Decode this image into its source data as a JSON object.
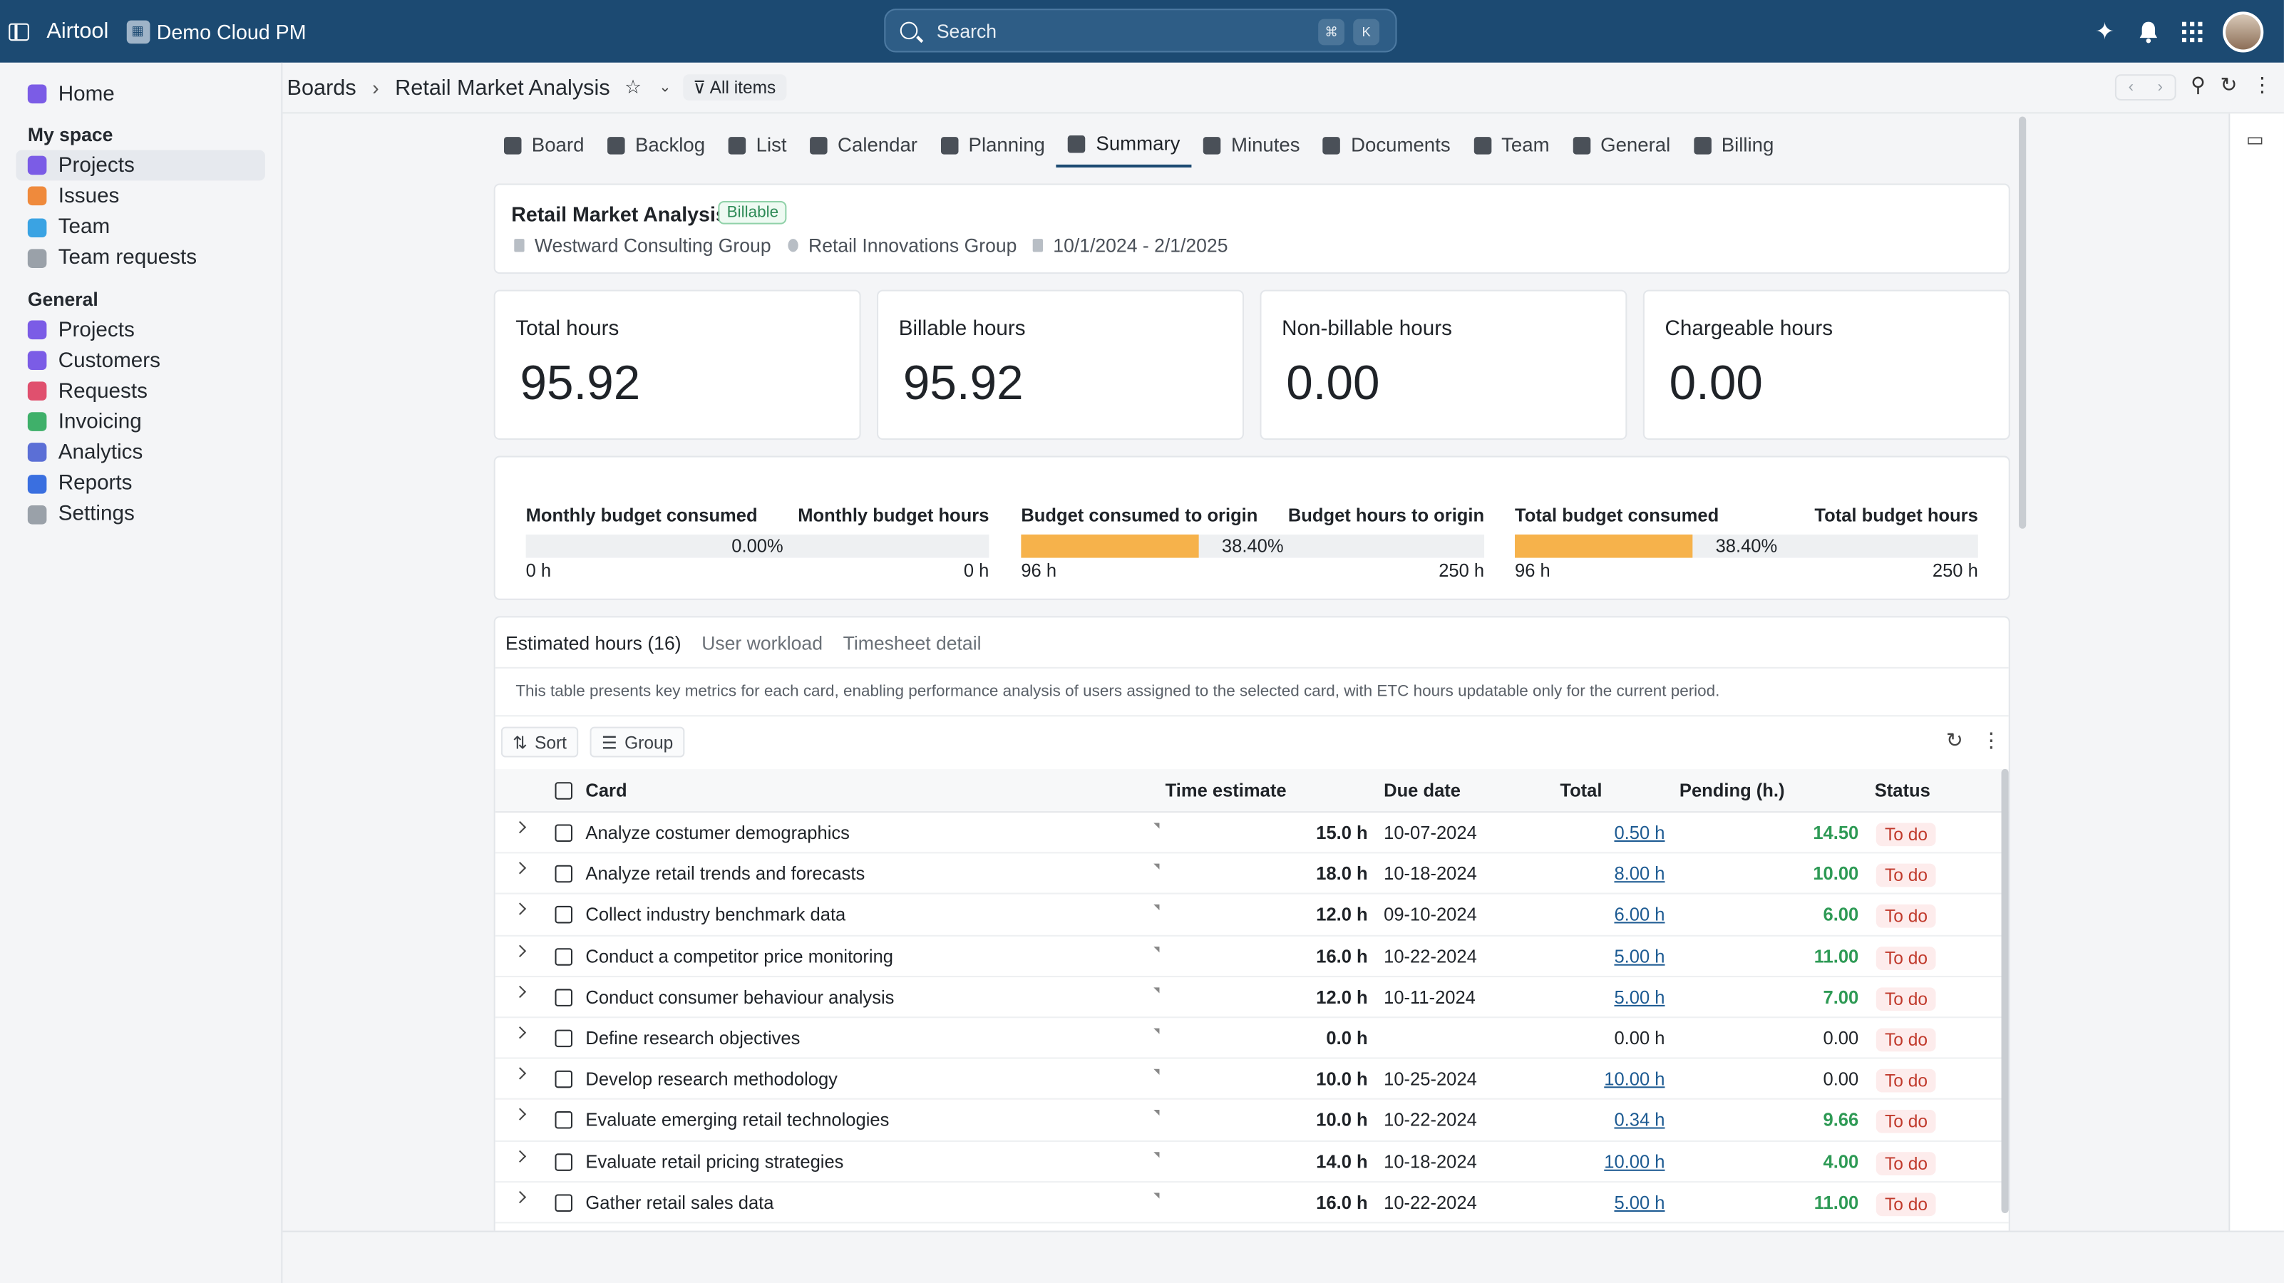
{
  "topbar": {
    "app_name": "Airtool",
    "workspace": "Demo Cloud PM",
    "search_placeholder": "Search",
    "kbd_cmd": "⌘",
    "kbd_k": "K"
  },
  "sidebar": {
    "home": "Home",
    "my_space_label": "My space",
    "my_space_items": [
      {
        "label": "Projects",
        "color": "#7b5ce6"
      },
      {
        "label": "Issues",
        "color": "#ef8a3c"
      },
      {
        "label": "Team",
        "color": "#3aa3e3"
      },
      {
        "label": "Team requests",
        "color": "#9aa1a9"
      }
    ],
    "general_label": "General",
    "general_items": [
      {
        "label": "Projects",
        "color": "#7b5ce6"
      },
      {
        "label": "Customers",
        "color": "#7b5ce6"
      },
      {
        "label": "Requests",
        "color": "#e0506e"
      },
      {
        "label": "Invoicing",
        "color": "#3fb06a"
      },
      {
        "label": "Analytics",
        "color": "#5b6fd6"
      },
      {
        "label": "Reports",
        "color": "#3a6fe0"
      },
      {
        "label": "Settings",
        "color": "#9aa1a9"
      }
    ]
  },
  "breadcrumb": {
    "root": "Boards",
    "current": "Retail Market Analysis",
    "filter": "All items"
  },
  "tabs": [
    "Board",
    "Backlog",
    "List",
    "Calendar",
    "Planning",
    "Summary",
    "Minutes",
    "Documents",
    "Team",
    "General",
    "Billing"
  ],
  "project": {
    "title": "Retail Market Analysis",
    "badge": "Billable",
    "company": "Westward Consulting Group",
    "client": "Retail Innovations Group",
    "dates": "10/1/2024 - 2/1/2025"
  },
  "kpis": [
    {
      "label": "Total hours",
      "value": "95.92"
    },
    {
      "label": "Billable hours",
      "value": "95.92"
    },
    {
      "label": "Non-billable hours",
      "value": "0.00"
    },
    {
      "label": "Chargeable hours",
      "value": "0.00"
    }
  ],
  "budgets": [
    {
      "left_label": "Monthly budget consumed",
      "right_label": "Monthly budget hours",
      "pct": "0.00%",
      "fill": 0.0,
      "left_h": "0 h",
      "right_h": "0 h"
    },
    {
      "left_label": "Budget consumed to origin",
      "right_label": "Budget hours to origin",
      "pct": "38.40%",
      "fill": 0.384,
      "left_h": "96 h",
      "right_h": "250 h"
    },
    {
      "left_label": "Total budget consumed",
      "right_label": "Total budget hours",
      "pct": "38.40%",
      "fill": 0.384,
      "left_h": "96 h",
      "right_h": "250 h"
    }
  ],
  "table": {
    "tabs": [
      "Estimated hours (16)",
      "User workload",
      "Timesheet detail"
    ],
    "description": "This table presents key metrics for each card, enabling performance analysis of users assigned to the selected card, with ETC hours updatable only for the current period.",
    "sort_label": "Sort",
    "group_label": "Group",
    "headers": {
      "card": "Card",
      "estimate": "Time estimate",
      "due": "Due date",
      "total": "Total",
      "pending": "Pending (h.)",
      "status": "Status"
    },
    "rows": [
      {
        "card": "Analyze costumer demographics",
        "estimate": "15.0 h",
        "due": "10-07-2024",
        "total": "0.50 h",
        "total_link": true,
        "pending": "14.50",
        "pending_green": true,
        "status": "To do"
      },
      {
        "card": "Analyze retail trends and forecasts",
        "estimate": "18.0 h",
        "due": "10-18-2024",
        "total": "8.00 h",
        "total_link": true,
        "pending": "10.00",
        "pending_green": true,
        "status": "To do"
      },
      {
        "card": "Collect industry benchmark data",
        "estimate": "12.0 h",
        "due": "09-10-2024",
        "total": "6.00 h",
        "total_link": true,
        "pending": "6.00",
        "pending_green": true,
        "status": "To do"
      },
      {
        "card": "Conduct a competitor price monitoring",
        "estimate": "16.0 h",
        "due": "10-22-2024",
        "total": "5.00 h",
        "total_link": true,
        "pending": "11.00",
        "pending_green": true,
        "status": "To do"
      },
      {
        "card": "Conduct consumer behaviour analysis",
        "estimate": "12.0 h",
        "due": "10-11-2024",
        "total": "5.00 h",
        "total_link": true,
        "pending": "7.00",
        "pending_green": true,
        "status": "To do"
      },
      {
        "card": "Define research objectives",
        "estimate": "0.0 h",
        "due": "",
        "total": "0.00 h",
        "total_link": false,
        "pending": "0.00",
        "pending_green": false,
        "status": "To do"
      },
      {
        "card": "Develop research methodology",
        "estimate": "10.0 h",
        "due": "10-25-2024",
        "total": "10.00 h",
        "total_link": true,
        "pending": "0.00",
        "pending_green": false,
        "status": "To do"
      },
      {
        "card": "Evaluate emerging retail technologies",
        "estimate": "10.0 h",
        "due": "10-22-2024",
        "total": "0.34 h",
        "total_link": true,
        "pending": "9.66",
        "pending_green": true,
        "status": "To do"
      },
      {
        "card": "Evaluate retail pricing strategies",
        "estimate": "14.0 h",
        "due": "10-18-2024",
        "total": "10.00 h",
        "total_link": true,
        "pending": "4.00",
        "pending_green": true,
        "status": "To do"
      },
      {
        "card": "Gather retail sales data",
        "estimate": "16.0 h",
        "due": "10-22-2024",
        "total": "5.00 h",
        "total_link": true,
        "pending": "11.00",
        "pending_green": true,
        "status": "To do"
      }
    ]
  }
}
